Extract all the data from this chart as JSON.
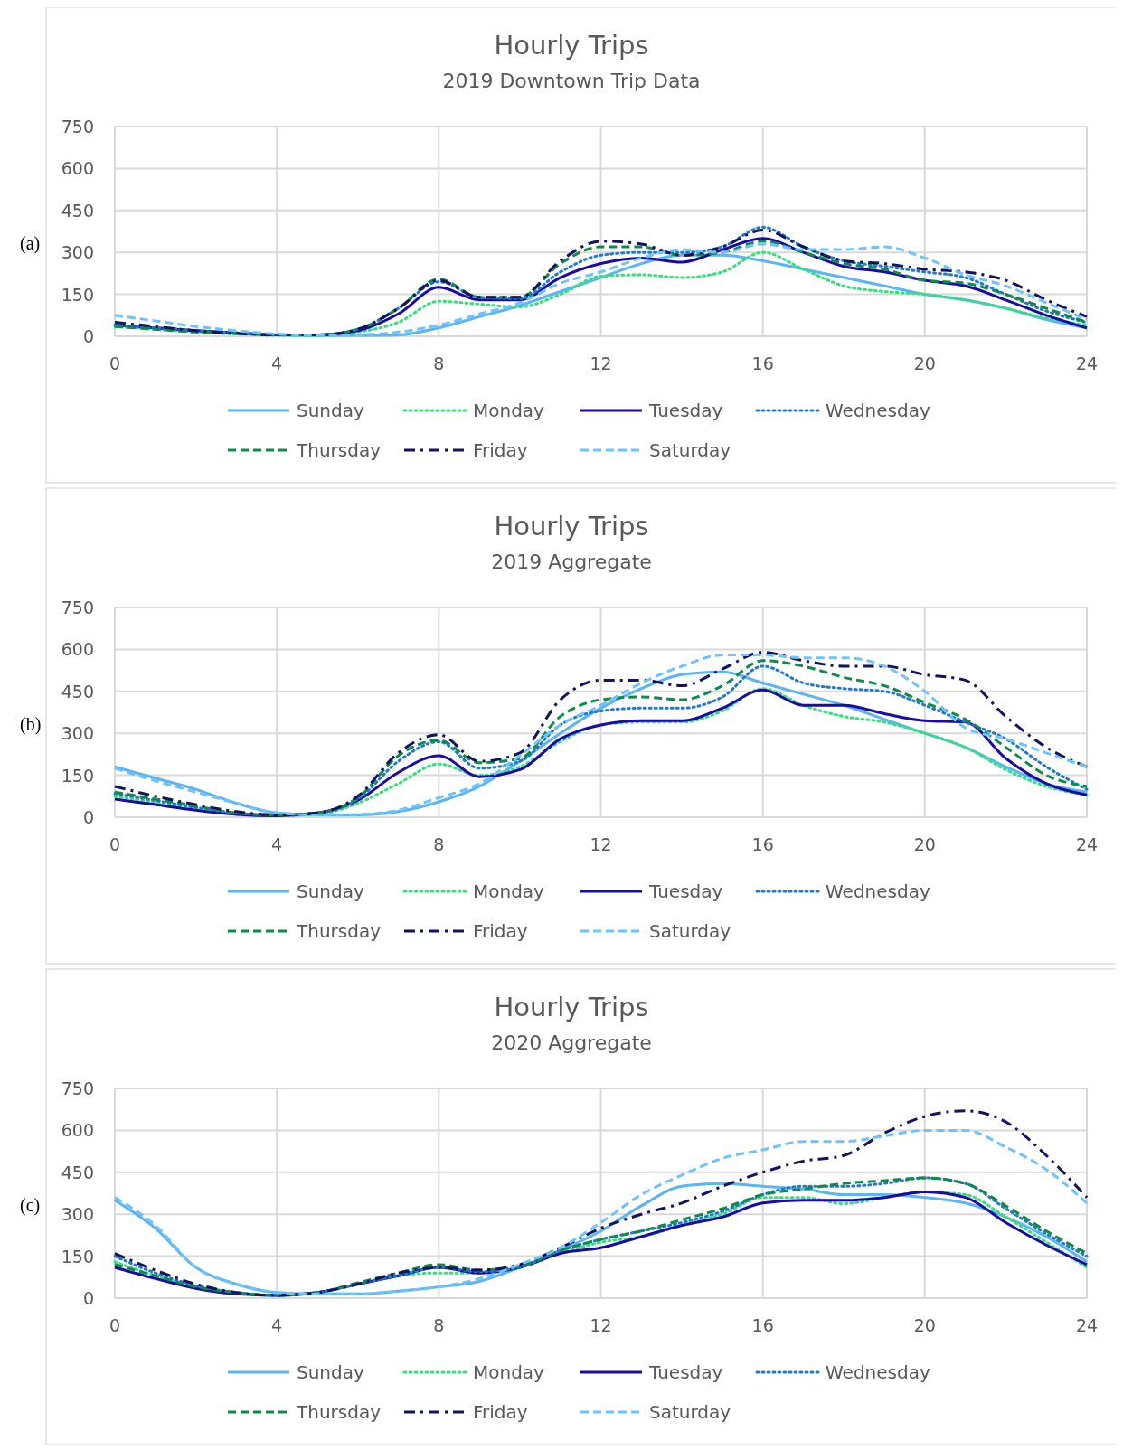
{
  "chart_data": [
    {
      "type": "line",
      "title": "Hourly Trips",
      "subtitle": "2019 Downtown Trip Data",
      "annotations": [
        "(a)"
      ],
      "x": [
        0,
        1,
        2,
        3,
        4,
        5,
        6,
        7,
        8,
        9,
        10,
        11,
        12,
        13,
        14,
        15,
        16,
        17,
        18,
        19,
        20,
        21,
        22,
        23,
        24
      ],
      "xlim": [
        0,
        24
      ],
      "ylim": [
        0,
        750
      ],
      "xticks": [
        0,
        4,
        8,
        12,
        16,
        20,
        24
      ],
      "yticks": [
        0,
        150,
        300,
        450,
        600,
        750
      ],
      "grid": true,
      "legend": "bottom",
      "marker": "none",
      "series": [
        {
          "name": "Sunday",
          "color": "#5ab4f5",
          "line_style": "solid",
          "values": [
            40,
            30,
            20,
            12,
            5,
            2,
            3,
            5,
            30,
            70,
            110,
            160,
            210,
            260,
            290,
            290,
            270,
            240,
            210,
            180,
            150,
            130,
            100,
            60,
            30
          ]
        },
        {
          "name": "Monday",
          "color": "#33e07a",
          "line_style": "dotted",
          "values": [
            35,
            25,
            15,
            8,
            3,
            3,
            15,
            50,
            125,
            115,
            105,
            150,
            215,
            220,
            210,
            230,
            300,
            240,
            180,
            160,
            150,
            130,
            100,
            65,
            40
          ]
        },
        {
          "name": "Tuesday",
          "color": "#1a0ba8",
          "line_style": "solid",
          "values": [
            40,
            30,
            20,
            12,
            5,
            5,
            20,
            80,
            175,
            130,
            130,
            210,
            260,
            280,
            265,
            310,
            350,
            300,
            250,
            230,
            200,
            180,
            130,
            75,
            30
          ]
        },
        {
          "name": "Wednesday",
          "color": "#1f78d1",
          "line_style": "dotted",
          "values": [
            40,
            30,
            20,
            12,
            5,
            5,
            25,
            100,
            195,
            140,
            135,
            230,
            290,
            300,
            300,
            320,
            390,
            320,
            270,
            250,
            230,
            210,
            150,
            90,
            50
          ]
        },
        {
          "name": "Thursday",
          "color": "#0f8a4a",
          "line_style": "dashed",
          "values": [
            35,
            25,
            15,
            10,
            5,
            5,
            25,
            100,
            205,
            140,
            140,
            260,
            320,
            320,
            290,
            300,
            340,
            300,
            260,
            240,
            200,
            190,
            150,
            100,
            50
          ]
        },
        {
          "name": "Friday",
          "color": "#14145e",
          "line_style": "dashdot",
          "values": [
            50,
            35,
            20,
            10,
            5,
            5,
            25,
            100,
            200,
            140,
            140,
            270,
            340,
            330,
            290,
            320,
            380,
            320,
            270,
            260,
            240,
            230,
            200,
            130,
            70
          ]
        },
        {
          "name": "Saturday",
          "color": "#6ec3ff",
          "line_style": "dashed",
          "values": [
            75,
            55,
            35,
            20,
            8,
            3,
            5,
            15,
            40,
            80,
            120,
            190,
            230,
            280,
            310,
            300,
            330,
            310,
            310,
            320,
            280,
            220,
            180,
            120,
            60
          ]
        }
      ]
    },
    {
      "type": "line",
      "title": "Hourly Trips",
      "subtitle": "2019 Aggregate",
      "annotations": [
        "(b)"
      ],
      "x": [
        0,
        1,
        2,
        3,
        4,
        5,
        6,
        7,
        8,
        9,
        10,
        11,
        12,
        13,
        14,
        15,
        16,
        17,
        18,
        19,
        20,
        21,
        22,
        23,
        24
      ],
      "xlim": [
        0,
        24
      ],
      "ylim": [
        0,
        750
      ],
      "xticks": [
        0,
        4,
        8,
        12,
        16,
        20,
        24
      ],
      "yticks": [
        0,
        150,
        300,
        450,
        600,
        750
      ],
      "grid": true,
      "legend": "bottom",
      "marker": "none",
      "series": [
        {
          "name": "Sunday",
          "color": "#5ab4f5",
          "line_style": "solid",
          "values": [
            180,
            140,
            100,
            50,
            15,
            8,
            8,
            20,
            55,
            110,
            200,
            300,
            390,
            460,
            510,
            520,
            480,
            440,
            400,
            350,
            300,
            250,
            180,
            120,
            90
          ]
        },
        {
          "name": "Monday",
          "color": "#33e07a",
          "line_style": "dotted",
          "values": [
            76,
            52,
            29,
            15,
            5,
            10,
            50,
            120,
            190,
            150,
            180,
            270,
            330,
            340,
            340,
            380,
            460,
            400,
            360,
            340,
            300,
            250,
            170,
            110,
            80
          ]
        },
        {
          "name": "Tuesday",
          "color": "#1a0ba8",
          "line_style": "solid",
          "values": [
            65,
            45,
            25,
            10,
            5,
            15,
            60,
            160,
            220,
            145,
            170,
            280,
            330,
            345,
            345,
            390,
            455,
            400,
            400,
            370,
            345,
            340,
            210,
            120,
            80
          ]
        },
        {
          "name": "Wednesday",
          "color": "#1f78d1",
          "line_style": "dotted",
          "values": [
            85,
            60,
            35,
            15,
            8,
            15,
            65,
            200,
            270,
            175,
            200,
            330,
            380,
            390,
            390,
            430,
            540,
            480,
            460,
            450,
            400,
            340,
            280,
            180,
            100
          ]
        },
        {
          "name": "Thursday",
          "color": "#0f8a4a",
          "line_style": "dashed",
          "values": [
            90,
            65,
            40,
            15,
            8,
            15,
            70,
            220,
            275,
            195,
            210,
            360,
            420,
            430,
            420,
            470,
            560,
            540,
            500,
            470,
            410,
            350,
            250,
            150,
            110
          ]
        },
        {
          "name": "Friday",
          "color": "#14145e",
          "line_style": "dashdot",
          "values": [
            110,
            75,
            45,
            20,
            8,
            15,
            75,
            230,
            295,
            200,
            230,
            420,
            490,
            490,
            470,
            530,
            590,
            560,
            540,
            540,
            510,
            490,
            360,
            250,
            180
          ]
        },
        {
          "name": "Saturday",
          "color": "#6ec3ff",
          "line_style": "dashed",
          "values": [
            175,
            130,
            90,
            50,
            15,
            8,
            10,
            25,
            70,
            120,
            220,
            330,
            400,
            480,
            540,
            580,
            580,
            570,
            570,
            540,
            450,
            320,
            280,
            230,
            180
          ]
        }
      ]
    },
    {
      "type": "line",
      "title": "Hourly Trips",
      "subtitle": "2020 Aggregate",
      "annotations": [
        "(c)"
      ],
      "x": [
        0,
        1,
        2,
        3,
        4,
        5,
        6,
        7,
        8,
        9,
        10,
        11,
        12,
        13,
        14,
        15,
        16,
        17,
        18,
        19,
        20,
        21,
        22,
        23,
        24
      ],
      "xlim": [
        0,
        24
      ],
      "ylim": [
        0,
        750
      ],
      "xticks": [
        0,
        4,
        8,
        12,
        16,
        20,
        24
      ],
      "yticks": [
        0,
        150,
        300,
        450,
        600,
        750
      ],
      "grid": true,
      "legend": "bottom",
      "marker": "none",
      "series": [
        {
          "name": "Sunday",
          "color": "#5ab4f5",
          "line_style": "solid",
          "values": [
            350,
            250,
            110,
            50,
            20,
            15,
            15,
            25,
            40,
            60,
            110,
            170,
            240,
            330,
            400,
            410,
            400,
            390,
            370,
            370,
            360,
            340,
            290,
            220,
            130
          ]
        },
        {
          "name": "Monday",
          "color": "#33e07a",
          "line_style": "dotted",
          "values": [
            130,
            80,
            40,
            20,
            10,
            20,
            50,
            80,
            90,
            90,
            110,
            160,
            200,
            220,
            260,
            300,
            360,
            360,
            338,
            360,
            380,
            370,
            290,
            200,
            110
          ]
        },
        {
          "name": "Tuesday",
          "color": "#1a0ba8",
          "line_style": "solid",
          "values": [
            110,
            70,
            35,
            15,
            10,
            20,
            50,
            80,
            110,
            90,
            110,
            160,
            180,
            220,
            260,
            290,
            340,
            350,
            350,
            360,
            380,
            360,
            270,
            190,
            120
          ]
        },
        {
          "name": "Wednesday",
          "color": "#1f78d1",
          "line_style": "dotted",
          "values": [
            150,
            90,
            45,
            20,
            10,
            20,
            50,
            80,
            110,
            95,
            110,
            170,
            210,
            240,
            270,
            310,
            370,
            400,
            400,
            410,
            430,
            410,
            320,
            230,
            150
          ]
        },
        {
          "name": "Thursday",
          "color": "#0f8a4a",
          "line_style": "dashed",
          "values": [
            120,
            80,
            40,
            20,
            10,
            20,
            55,
            90,
            120,
            100,
            115,
            170,
            210,
            240,
            280,
            320,
            370,
            390,
            410,
            420,
            430,
            410,
            330,
            240,
            160
          ]
        },
        {
          "name": "Friday",
          "color": "#14145e",
          "line_style": "dashdot",
          "values": [
            160,
            100,
            50,
            20,
            10,
            20,
            50,
            90,
            110,
            100,
            120,
            180,
            250,
            300,
            340,
            400,
            450,
            490,
            510,
            590,
            650,
            670,
            630,
            510,
            360
          ]
        },
        {
          "name": "Saturday",
          "color": "#6ec3ff",
          "line_style": "dashed",
          "values": [
            360,
            260,
            110,
            50,
            20,
            15,
            15,
            25,
            40,
            70,
            120,
            180,
            270,
            370,
            440,
            500,
            530,
            560,
            560,
            580,
            600,
            600,
            540,
            460,
            340
          ]
        }
      ]
    }
  ]
}
